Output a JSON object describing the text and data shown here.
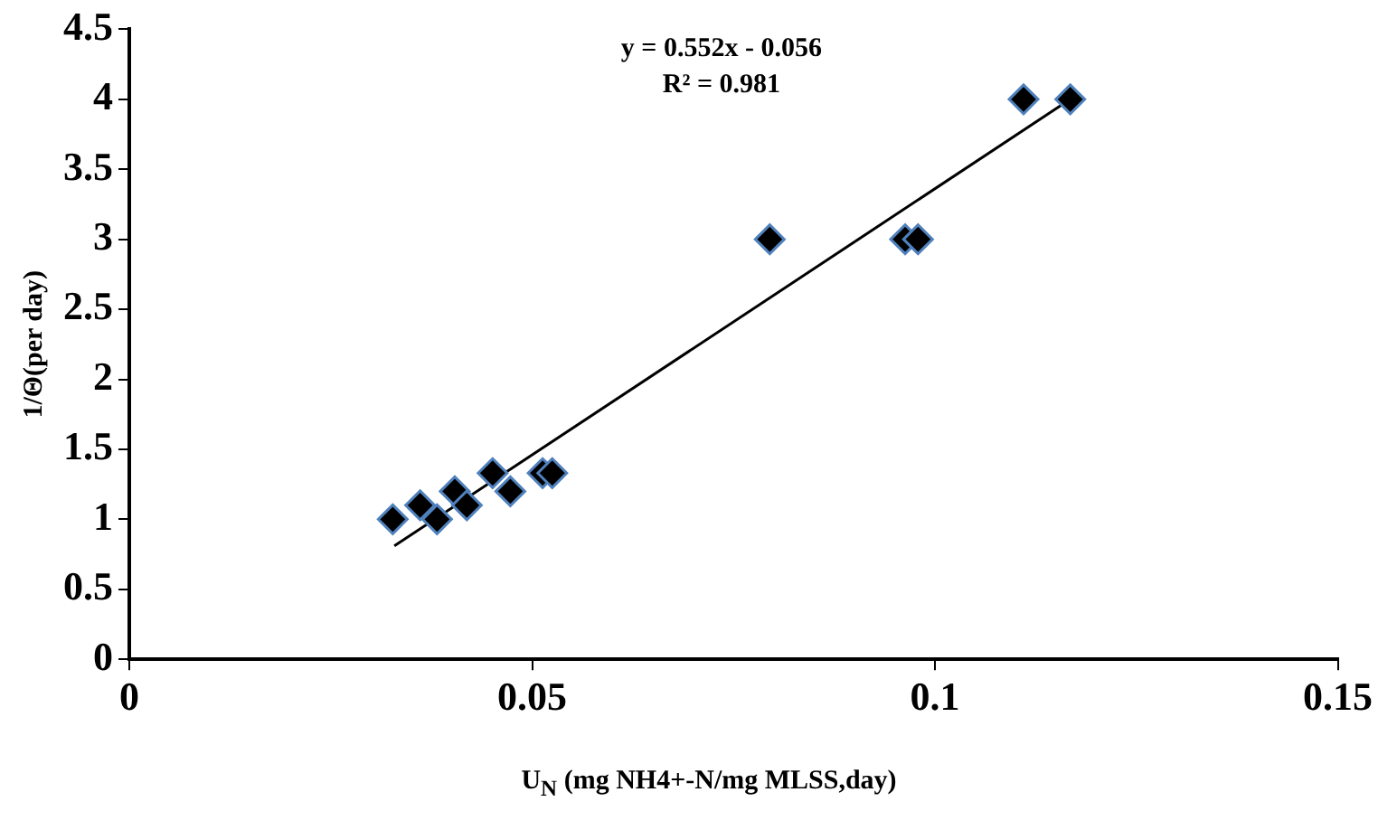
{
  "chart_data": {
    "type": "scatter",
    "xlabel": "U$_{N}$ (mg NH4+-N/mg MLSS,day)",
    "ylabel": "1/Θ(per day)",
    "annotations": [
      "y = 0.552x - 0.056",
      "R² = 0.981"
    ],
    "xlim": [
      0,
      0.15
    ],
    "xticks": [
      0,
      0.05,
      0.1,
      0.15
    ],
    "ylim": [
      0,
      4.5
    ],
    "yticks": [
      0,
      0.5,
      1,
      1.5,
      2,
      2.5,
      3,
      3.5,
      4,
      4.5
    ],
    "grid": false,
    "legend": false,
    "marker": "diamond",
    "series": [
      {
        "type": "scatter",
        "color": "#000000",
        "x": [
          0.0327,
          0.0361,
          0.0382,
          0.0404,
          0.0419,
          0.0451,
          0.0473,
          0.0513,
          0.0525,
          0.0795,
          0.0963,
          0.0979,
          0.111,
          0.1168
        ],
        "values": [
          1.0,
          1.1,
          1.0,
          1.2,
          1.1,
          1.33,
          1.2,
          1.33,
          1.33,
          3.0,
          3.0,
          3.0,
          4.0,
          4.0
        ]
      },
      {
        "type": "line",
        "color": "#000000",
        "marker": "none",
        "line_style": "solid",
        "x": [
          0.0329,
          0.1168
        ],
        "values": [
          0.81,
          4.0
        ]
      }
    ]
  }
}
